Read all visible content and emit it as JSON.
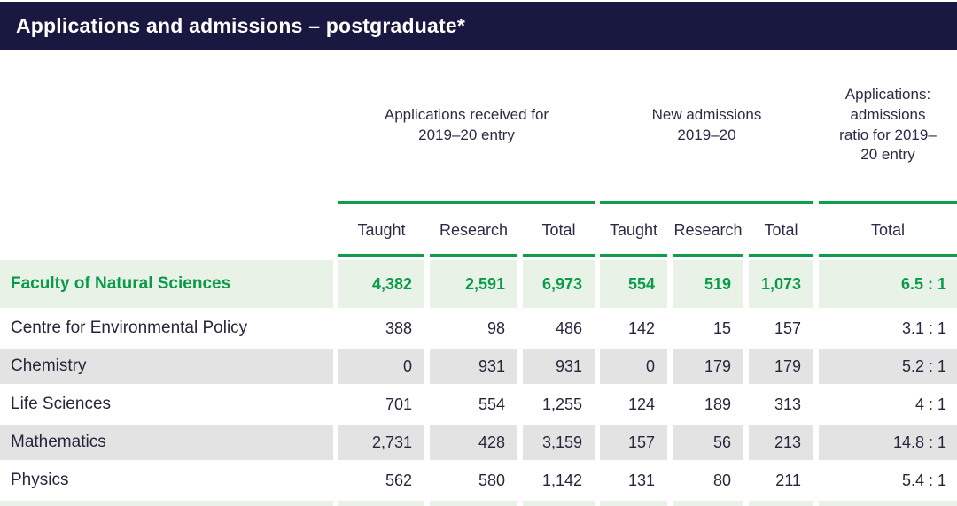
{
  "title": "Applications and admissions – postgraduate*",
  "colors": {
    "navy": "#181840",
    "green_accent": "#0f9d4c",
    "green_text": "#0a9a49",
    "light_green_bg": "#e8f2e6",
    "gray_row_bg": "#e3e3e3",
    "body_text": "#26263c"
  },
  "table": {
    "column_groups": [
      {
        "label": "Applications received for 2019–20 entry"
      },
      {
        "label": "New admissions 2019–20"
      },
      {
        "label": "Applications: admissions ratio for 2019–20 entry"
      }
    ],
    "sub_headers": [
      "Taught",
      "Research",
      "Total",
      "Taught",
      "Research",
      "Total",
      "Total"
    ],
    "rows": [
      {
        "label": "Faculty of Natural Sciences",
        "highlight": true,
        "values": [
          "4,382",
          "2,591",
          "6,973",
          "554",
          "519",
          "1,073",
          "6.5 : 1"
        ]
      },
      {
        "label": "Centre for Environmental Policy",
        "highlight": false,
        "values": [
          "388",
          "98",
          "486",
          "142",
          "15",
          "157",
          "3.1 : 1"
        ]
      },
      {
        "label": "Chemistry",
        "highlight": false,
        "values": [
          "0",
          "931",
          "931",
          "0",
          "179",
          "179",
          "5.2 : 1"
        ]
      },
      {
        "label": "Life Sciences",
        "highlight": false,
        "values": [
          "701",
          "554",
          "1,255",
          "124",
          "189",
          "313",
          "4 : 1"
        ]
      },
      {
        "label": "Mathematics",
        "highlight": false,
        "values": [
          "2,731",
          "428",
          "3,159",
          "157",
          "56",
          "213",
          "14.8 : 1"
        ]
      },
      {
        "label": "Physics",
        "highlight": false,
        "values": [
          "562",
          "580",
          "1,142",
          "131",
          "80",
          "211",
          "5.4 : 1"
        ]
      }
    ]
  }
}
